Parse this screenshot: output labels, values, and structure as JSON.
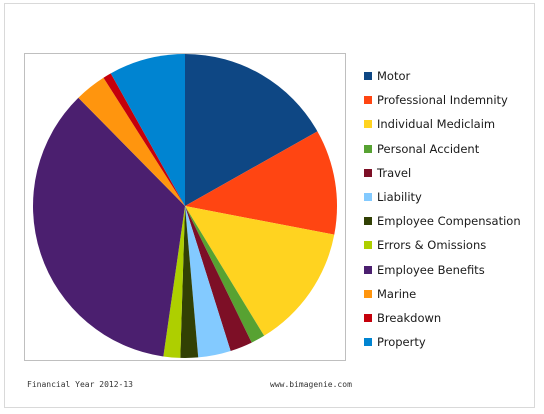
{
  "chart_data": {
    "type": "pie",
    "start": "12 o'clock",
    "direction": "clockwise",
    "legend_position": "right",
    "slices": [
      {
        "label": "Motor",
        "value": 17.0,
        "color": "#0e4784"
      },
      {
        "label": "Professional Indemnity",
        "value": 11.3,
        "color": "#ff4512"
      },
      {
        "label": "Individual Mediclaim",
        "value": 13.4,
        "color": "#ffd320"
      },
      {
        "label": "Personal Accident",
        "value": 1.5,
        "color": "#57a232"
      },
      {
        "label": "Travel",
        "value": 2.4,
        "color": "#7d0f26"
      },
      {
        "label": "Liability",
        "value": 3.5,
        "color": "#83caff"
      },
      {
        "label": "Employee Compensation",
        "value": 1.9,
        "color": "#314004"
      },
      {
        "label": "Errors & Omissions",
        "value": 1.8,
        "color": "#aecf00"
      },
      {
        "label": "Employee Benefits",
        "value": 35.7,
        "color": "#4b1f6f"
      },
      {
        "label": "Marine",
        "value": 3.4,
        "color": "#ff950e"
      },
      {
        "label": "Breakdown",
        "value": 0.9,
        "color": "#c5000b"
      },
      {
        "label": "Property",
        "value": 8.2,
        "color": "#0084d1"
      }
    ]
  },
  "footer": {
    "left": "Financial Year 2012-13",
    "right": "www.bimagenie.com"
  }
}
